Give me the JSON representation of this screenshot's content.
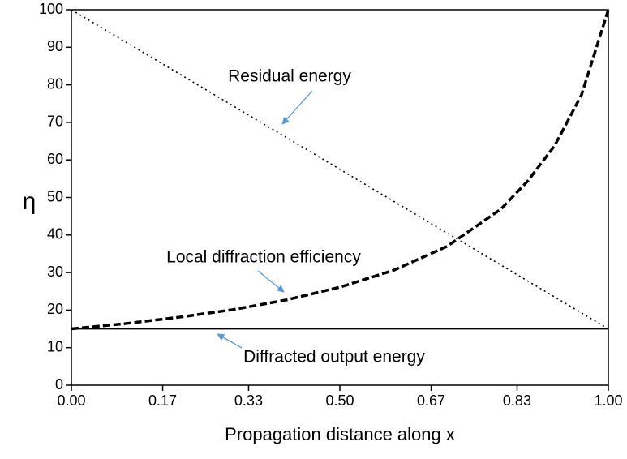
{
  "chart_data": {
    "type": "line",
    "xlabel": "Propagation distance along x",
    "ylabel": "η",
    "x": [
      0,
      0.1,
      0.2,
      0.3,
      0.4,
      0.5,
      0.6,
      0.7,
      0.8,
      0.85,
      0.9,
      0.95,
      1
    ],
    "series": [
      {
        "name": "Residual energy",
        "color": "#000000",
        "style": "dotted",
        "values": [
          100,
          91.5,
          83,
          74.5,
          66,
          57.5,
          49,
          40.5,
          32,
          27.75,
          23.5,
          19.25,
          15
        ]
      },
      {
        "name": "Local diffraction efficiency",
        "color": "#000000",
        "style": "dashed",
        "values": [
          15,
          16.4,
          18.1,
          20.1,
          22.7,
          26.1,
          30.6,
          37,
          46.9,
          54.4,
          63.8,
          77.3,
          100
        ]
      },
      {
        "name": "Diffracted output energy",
        "color": "#000000",
        "style": "solid",
        "values": [
          15,
          15,
          15,
          15,
          15,
          15,
          15,
          15,
          15,
          15,
          15,
          15,
          15
        ]
      }
    ],
    "xlim": [
      0,
      1
    ],
    "xticks": [
      {
        "value": 0,
        "label": "0.00"
      },
      0.17,
      0.33,
      {
        "value": 0.5,
        "label": "0.50"
      },
      0.67,
      0.83,
      {
        "value": 1,
        "label": "1.00"
      }
    ],
    "ylim": [
      0,
      100
    ],
    "yticks": [
      0,
      10,
      20,
      30,
      40,
      50,
      60,
      70,
      80,
      90,
      100
    ],
    "grid": false
  }
}
